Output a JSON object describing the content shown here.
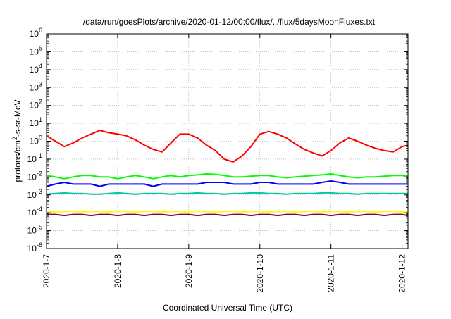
{
  "chart_data": {
    "type": "line",
    "title": "/data/run/goesPlots/archive/2020-01-12/00:00/flux/../flux/5daysMoonFluxes.txt",
    "xlabel": "Coordinated Universal Time (UTC)",
    "ylabel_base": "protons/cm",
    "ylabel_sup": "2",
    "ylabel_rest": "-s-sr-MeV",
    "yscale": "log",
    "ylim": [
      1e-06,
      1000000.0
    ],
    "xlim": [
      "2020-01-07T00:00",
      "2020-01-12T02:00"
    ],
    "grid": true,
    "y_tick_base": "10",
    "y_tick_exponents": [
      "-6",
      "-5",
      "-4",
      "-3",
      "-2",
      "-1",
      "0",
      "1",
      "2",
      "3",
      "4",
      "5",
      "6"
    ],
    "x_ticks": [
      "2020-1-7",
      "2020-1-8",
      "2020-1-9",
      "2020-1-10",
      "2020-1-11",
      "2020-1-12"
    ],
    "x": [
      "2020-01-07T00:00",
      "2020-01-07T03:00",
      "2020-01-07T06:00",
      "2020-01-07T09:00",
      "2020-01-07T12:00",
      "2020-01-07T15:00",
      "2020-01-07T18:00",
      "2020-01-07T21:00",
      "2020-01-08T00:00",
      "2020-01-08T03:00",
      "2020-01-08T06:00",
      "2020-01-08T09:00",
      "2020-01-08T12:00",
      "2020-01-08T15:00",
      "2020-01-08T18:00",
      "2020-01-08T21:00",
      "2020-01-09T00:00",
      "2020-01-09T03:00",
      "2020-01-09T06:00",
      "2020-01-09T09:00",
      "2020-01-09T12:00",
      "2020-01-09T15:00",
      "2020-01-09T18:00",
      "2020-01-09T21:00",
      "2020-01-10T00:00",
      "2020-01-10T03:00",
      "2020-01-10T06:00",
      "2020-01-10T09:00",
      "2020-01-10T12:00",
      "2020-01-10T15:00",
      "2020-01-10T18:00",
      "2020-01-10T21:00",
      "2020-01-11T00:00",
      "2020-01-11T03:00",
      "2020-01-11T06:00",
      "2020-01-11T09:00",
      "2020-01-11T12:00",
      "2020-01-11T15:00",
      "2020-01-11T18:00",
      "2020-01-11T21:00",
      "2020-01-12T00:00",
      "2020-01-12T02:00"
    ],
    "series": [
      {
        "color": "#ff0000",
        "values": [
          2.0,
          1.0,
          0.5,
          0.8,
          1.5,
          2.5,
          4.0,
          3.0,
          2.5,
          2.0,
          1.2,
          0.6,
          0.35,
          0.25,
          0.8,
          2.5,
          2.5,
          1.5,
          0.6,
          0.3,
          0.1,
          0.07,
          0.15,
          0.5,
          2.5,
          3.5,
          2.5,
          1.5,
          0.7,
          0.35,
          0.22,
          0.15,
          0.3,
          0.8,
          1.5,
          1.0,
          0.6,
          0.4,
          0.3,
          0.25,
          0.5,
          0.6
        ]
      },
      {
        "color": "#00ff00",
        "values": [
          0.012,
          0.01,
          0.008,
          0.01,
          0.012,
          0.012,
          0.01,
          0.01,
          0.008,
          0.01,
          0.012,
          0.01,
          0.008,
          0.01,
          0.012,
          0.01,
          0.012,
          0.013,
          0.015,
          0.014,
          0.012,
          0.01,
          0.01,
          0.011,
          0.012,
          0.012,
          0.01,
          0.009,
          0.01,
          0.011,
          0.012,
          0.013,
          0.015,
          0.012,
          0.01,
          0.009,
          0.01,
          0.01,
          0.011,
          0.012,
          0.012,
          0.011
        ]
      },
      {
        "color": "#0000ff",
        "values": [
          0.003,
          0.004,
          0.005,
          0.004,
          0.004,
          0.004,
          0.003,
          0.004,
          0.004,
          0.004,
          0.004,
          0.004,
          0.003,
          0.004,
          0.004,
          0.004,
          0.004,
          0.004,
          0.005,
          0.005,
          0.005,
          0.004,
          0.004,
          0.004,
          0.005,
          0.005,
          0.004,
          0.004,
          0.004,
          0.004,
          0.004,
          0.005,
          0.006,
          0.005,
          0.004,
          0.004,
          0.004,
          0.004,
          0.004,
          0.004,
          0.004,
          0.004
        ]
      },
      {
        "color": "#00c8a0",
        "values": [
          0.0011,
          0.0012,
          0.0013,
          0.0012,
          0.0012,
          0.0011,
          0.0011,
          0.0012,
          0.0013,
          0.0012,
          0.0011,
          0.0012,
          0.0012,
          0.0012,
          0.0011,
          0.0012,
          0.0012,
          0.0013,
          0.0012,
          0.0012,
          0.0011,
          0.0012,
          0.0012,
          0.0013,
          0.0013,
          0.0012,
          0.0012,
          0.0011,
          0.0012,
          0.0012,
          0.0012,
          0.0013,
          0.0013,
          0.0012,
          0.0012,
          0.0011,
          0.0012,
          0.0012,
          0.0012,
          0.0012,
          0.0012,
          0.0012
        ]
      },
      {
        "color": "#ffff00",
        "values": [
          0.00012,
          0.00011,
          0.00012,
          0.00012,
          0.00011,
          0.00012,
          0.00012,
          0.00011,
          0.00012,
          0.00012,
          0.00011,
          0.00012,
          0.00012,
          0.00011,
          0.00012,
          0.00012,
          0.00011,
          0.00012,
          0.00012,
          0.00011,
          0.00012,
          0.00012,
          0.00011,
          0.00012,
          0.00012,
          0.00011,
          0.00012,
          0.00012,
          0.00011,
          0.00012,
          0.00012,
          0.00011,
          0.00012,
          0.00012,
          0.00011,
          0.00012,
          0.00012,
          0.00011,
          0.00012,
          0.00012,
          0.00011,
          0.00012
        ]
      },
      {
        "color": "#800040",
        "values": [
          8e-05,
          8e-05,
          7e-05,
          8e-05,
          8e-05,
          7e-05,
          8e-05,
          8e-05,
          7e-05,
          8e-05,
          8e-05,
          7e-05,
          8e-05,
          8e-05,
          7e-05,
          8e-05,
          8e-05,
          7e-05,
          8e-05,
          8e-05,
          7e-05,
          8e-05,
          8e-05,
          7e-05,
          8e-05,
          8e-05,
          7e-05,
          8e-05,
          8e-05,
          7e-05,
          8e-05,
          8e-05,
          7e-05,
          8e-05,
          8e-05,
          7e-05,
          8e-05,
          8e-05,
          7e-05,
          8e-05,
          8e-05,
          7e-05
        ]
      }
    ]
  }
}
